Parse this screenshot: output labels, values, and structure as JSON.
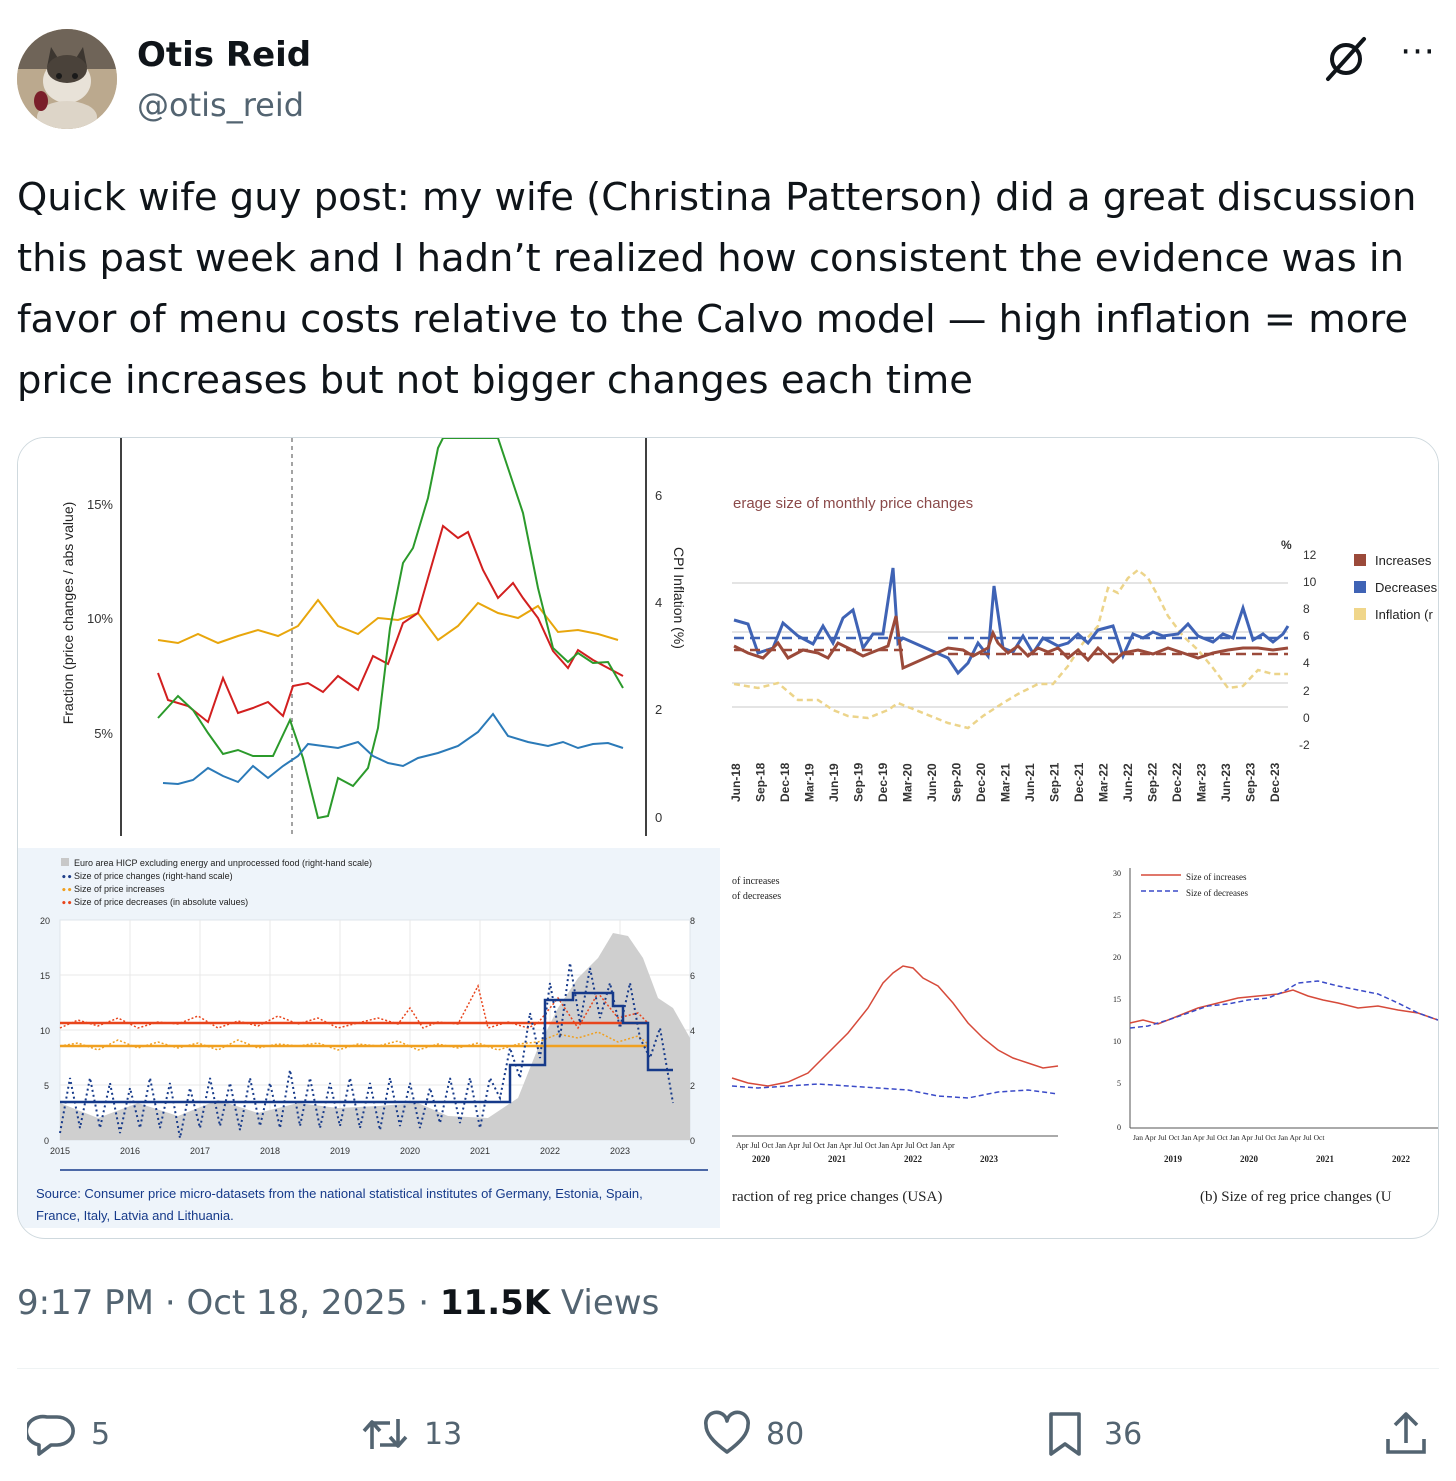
{
  "author": {
    "name": "Otis Reid",
    "handle": "@otis_reid"
  },
  "post": {
    "text": "Quick wife guy post: my wife (Christina Patterson) did a great discussion\nthis past week and I hadn’t realized how consistent the evidence was in\nfavor of menu costs relative to the Calvo model — high inflation = more\nprice increases but not bigger changes each time"
  },
  "meta": {
    "time": "9:17 PM",
    "date": "Oct 18, 2025",
    "views_count": "11.5K",
    "views_label": "Views"
  },
  "actions": {
    "replies": "5",
    "reposts": "13",
    "likes": "80",
    "bookmarks": "36"
  },
  "icons": [
    "grok-icon",
    "more-icon",
    "reply-icon",
    "repost-icon",
    "like-icon",
    "bookmark-icon",
    "share-icon"
  ],
  "colors": {
    "text": "#0f1419",
    "secondary": "#536471",
    "border": "#cfd9de"
  },
  "media": {
    "panel1": {
      "ylabel_left": "Fraction (price changes / abs value)",
      "ylabel_right": "CPI Inflation (%)",
      "left_ticks": [
        "15%",
        "10%",
        "5%"
      ],
      "right_ticks": [
        "6",
        "4",
        "2",
        "0"
      ]
    },
    "panel2": {
      "title": "erage size of monthly price changes",
      "unit": "%",
      "right_ticks": [
        "12",
        "10",
        "8",
        "6",
        "4",
        "2",
        "0",
        "-2"
      ],
      "legend": [
        "Increases",
        "Decreases",
        "Inflation (r"
      ],
      "x_ticks": [
        "Jun-18",
        "Sep-18",
        "Dec-18",
        "Mar-19",
        "Jun-19",
        "Sep-19",
        "Dec-19",
        "Mar-20",
        "Jun-20",
        "Sep-20",
        "Dec-20",
        "Mar-21",
        "Jun-21",
        "Sep-21",
        "Dec-21",
        "Mar-22",
        "Jun-22",
        "Sep-22",
        "Dec-22",
        "Mar-23",
        "Jun-23",
        "Sep-23",
        "Dec-23"
      ]
    },
    "panel3": {
      "legend": [
        "Euro area HICP excluding energy and unprocessed food (right-hand scale)",
        "Size of price changes (right-hand scale)",
        "Size of price increases",
        "Size of price decreases (in absolute values)"
      ],
      "left_ticks": [
        "20",
        "15",
        "10",
        "5",
        "0"
      ],
      "right_ticks": [
        "8",
        "6",
        "4",
        "2",
        "0"
      ],
      "x_ticks": [
        "2015",
        "2016",
        "2017",
        "2018",
        "2019",
        "2020",
        "2021",
        "2022",
        "2023"
      ],
      "source": "Source: Consumer price micro-datasets from the national statistical institutes of Germany, Estonia, Spain,",
      "source2": "France, Italy, Latvia and Lithuania."
    },
    "panel4": {
      "legend": [
        "of increases",
        "of decreases"
      ],
      "months": "Apr  Jul  Oct  Jan  Apr  Jul  Oct  Jan  Apr  Jul  Oct  Jan  Apr  Jul  Oct  Jan  Apr",
      "years": [
        "2020",
        "2021",
        "2022",
        "2023"
      ],
      "caption": "raction of reg price changes (USA)"
    },
    "panel5": {
      "legend": [
        "Size of increases",
        "Size of decreases"
      ],
      "y_ticks": [
        "30",
        "25",
        "20",
        "15",
        "10",
        "5",
        "0"
      ],
      "months": "Jan  Apr  Jul  Oct  Jan  Apr  Jul  Oct  Jan  Apr  Jul  Oct  Jan  Apr  Jul  Oct",
      "years": [
        "2019",
        "2020",
        "2021",
        "2022"
      ],
      "caption": "(b) Size of reg price changes (U"
    }
  }
}
